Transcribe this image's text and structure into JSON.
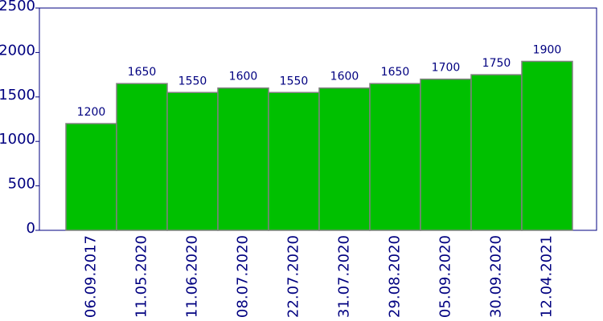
{
  "chart_data": {
    "type": "bar",
    "categories": [
      "06.09.2017",
      "11.05.2020",
      "11.06.2020",
      "08.07.2020",
      "22.07.2020",
      "31.07.2020",
      "29.08.2020",
      "05.09.2020",
      "30.09.2020",
      "12.04.2021"
    ],
    "values": [
      1200,
      1650,
      1550,
      1600,
      1550,
      1600,
      1650,
      1700,
      1750,
      1900
    ],
    "color": "#00c000",
    "ylim": [
      0,
      2500
    ],
    "yticks": [
      0,
      500,
      1000,
      1500,
      2000,
      2500
    ]
  }
}
